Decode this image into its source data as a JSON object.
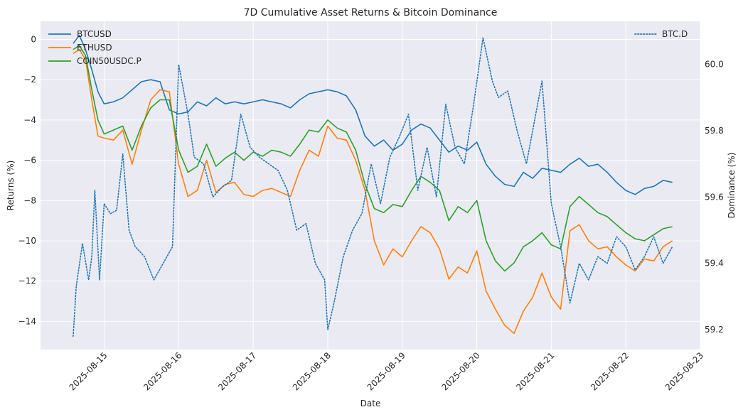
{
  "chart_data": {
    "type": "line",
    "title": "7D Cumulative Asset Returns & Bitcoin Dominance",
    "xlabel": "Date",
    "ylabel": "Returns (%)",
    "ylabel_right": "Dominance (%)",
    "x_ticks": [
      "2025-08-15",
      "2025-08-16",
      "2025-08-17",
      "2025-08-18",
      "2025-08-19",
      "2025-08-20",
      "2025-08-21",
      "2025-08-22",
      "2025-08-23"
    ],
    "xlim": [
      "2025-08-14T03:30",
      "2025-08-23T00:00"
    ],
    "ylim": [
      -15.4,
      0.9
    ],
    "y_ticks": [
      0,
      -2,
      -4,
      -6,
      -8,
      -10,
      -12,
      -14
    ],
    "y_tick_labels": [
      "0",
      "−2",
      "−4",
      "−6",
      "−8",
      "−10",
      "−12",
      "−14"
    ],
    "ylim_right": [
      59.14,
      60.13
    ],
    "y_ticks_right": [
      59.2,
      59.4,
      59.6,
      59.8,
      60.0
    ],
    "y_tick_labels_right": [
      "59.2",
      "59.4",
      "59.6",
      "59.8",
      "60.0"
    ],
    "grid": true,
    "legend_left_position": "top-left",
    "legend_right_position": "top-right",
    "series": [
      {
        "name": "BTCUSD",
        "color": "#1f77b4",
        "axis": "left",
        "style": "solid",
        "x": [
          "2025-08-14T14:00",
          "2025-08-14T16:00",
          "2025-08-14T18:00",
          "2025-08-14T20:00",
          "2025-08-14T22:00",
          "2025-08-15T00:00",
          "2025-08-15T03:00",
          "2025-08-15T06:00",
          "2025-08-15T09:00",
          "2025-08-15T12:00",
          "2025-08-15T15:00",
          "2025-08-15T18:00",
          "2025-08-15T21:00",
          "2025-08-16T00:00",
          "2025-08-16T03:00",
          "2025-08-16T06:00",
          "2025-08-16T09:00",
          "2025-08-16T12:00",
          "2025-08-16T15:00",
          "2025-08-16T18:00",
          "2025-08-16T21:00",
          "2025-08-17T00:00",
          "2025-08-17T03:00",
          "2025-08-17T06:00",
          "2025-08-17T09:00",
          "2025-08-17T12:00",
          "2025-08-17T15:00",
          "2025-08-17T18:00",
          "2025-08-17T21:00",
          "2025-08-18T00:00",
          "2025-08-18T03:00",
          "2025-08-18T06:00",
          "2025-08-18T09:00",
          "2025-08-18T12:00",
          "2025-08-18T15:00",
          "2025-08-18T18:00",
          "2025-08-18T21:00",
          "2025-08-19T00:00",
          "2025-08-19T03:00",
          "2025-08-19T06:00",
          "2025-08-19T09:00",
          "2025-08-19T12:00",
          "2025-08-19T15:00",
          "2025-08-19T18:00",
          "2025-08-19T21:00",
          "2025-08-20T00:00",
          "2025-08-20T03:00",
          "2025-08-20T06:00",
          "2025-08-20T09:00",
          "2025-08-20T12:00",
          "2025-08-20T15:00",
          "2025-08-20T18:00",
          "2025-08-20T21:00",
          "2025-08-21T00:00",
          "2025-08-21T03:00",
          "2025-08-21T06:00",
          "2025-08-21T09:00",
          "2025-08-21T12:00",
          "2025-08-21T15:00",
          "2025-08-21T18:00",
          "2025-08-21T21:00",
          "2025-08-22T00:00",
          "2025-08-22T03:00",
          "2025-08-22T06:00",
          "2025-08-22T09:00",
          "2025-08-22T12:00",
          "2025-08-22T15:00"
        ],
        "y": [
          -0.2,
          0.2,
          -0.5,
          -1.5,
          -2.6,
          -3.2,
          -3.1,
          -2.9,
          -2.5,
          -2.1,
          -2.0,
          -2.1,
          -3.5,
          -3.7,
          -3.6,
          -3.1,
          -3.3,
          -2.9,
          -3.2,
          -3.1,
          -3.2,
          -3.1,
          -3.0,
          -3.1,
          -3.2,
          -3.4,
          -3.0,
          -2.7,
          -2.6,
          -2.5,
          -2.6,
          -2.8,
          -3.5,
          -4.8,
          -5.3,
          -5.0,
          -5.5,
          -5.2,
          -4.5,
          -4.2,
          -4.4,
          -5.0,
          -5.6,
          -5.3,
          -5.5,
          -5.1,
          -6.2,
          -6.8,
          -7.2,
          -7.3,
          -6.6,
          -6.9,
          -6.4,
          -6.5,
          -6.6,
          -6.2,
          -5.9,
          -6.3,
          -6.2,
          -6.6,
          -7.1,
          -7.5,
          -7.7,
          -7.4,
          -7.3,
          -7.0,
          -7.1
        ]
      },
      {
        "name": "ETHUSD",
        "color": "#ff7f0e",
        "axis": "left",
        "style": "solid",
        "x": [
          "2025-08-14T14:00",
          "2025-08-14T16:00",
          "2025-08-14T18:00",
          "2025-08-14T20:00",
          "2025-08-14T22:00",
          "2025-08-15T00:00",
          "2025-08-15T03:00",
          "2025-08-15T06:00",
          "2025-08-15T09:00",
          "2025-08-15T12:00",
          "2025-08-15T15:00",
          "2025-08-15T18:00",
          "2025-08-15T21:00",
          "2025-08-16T00:00",
          "2025-08-16T03:00",
          "2025-08-16T06:00",
          "2025-08-16T09:00",
          "2025-08-16T12:00",
          "2025-08-16T15:00",
          "2025-08-16T18:00",
          "2025-08-16T21:00",
          "2025-08-17T00:00",
          "2025-08-17T03:00",
          "2025-08-17T06:00",
          "2025-08-17T09:00",
          "2025-08-17T12:00",
          "2025-08-17T15:00",
          "2025-08-17T18:00",
          "2025-08-17T21:00",
          "2025-08-18T00:00",
          "2025-08-18T03:00",
          "2025-08-18T06:00",
          "2025-08-18T09:00",
          "2025-08-18T12:00",
          "2025-08-18T15:00",
          "2025-08-18T18:00",
          "2025-08-18T21:00",
          "2025-08-19T00:00",
          "2025-08-19T03:00",
          "2025-08-19T06:00",
          "2025-08-19T09:00",
          "2025-08-19T12:00",
          "2025-08-19T15:00",
          "2025-08-19T18:00",
          "2025-08-19T21:00",
          "2025-08-20T00:00",
          "2025-08-20T03:00",
          "2025-08-20T06:00",
          "2025-08-20T09:00",
          "2025-08-20T12:00",
          "2025-08-20T15:00",
          "2025-08-20T18:00",
          "2025-08-20T21:00",
          "2025-08-21T00:00",
          "2025-08-21T03:00",
          "2025-08-21T06:00",
          "2025-08-21T09:00",
          "2025-08-21T12:00",
          "2025-08-21T15:00",
          "2025-08-21T18:00",
          "2025-08-21T21:00",
          "2025-08-22T00:00",
          "2025-08-22T03:00",
          "2025-08-22T06:00",
          "2025-08-22T09:00",
          "2025-08-22T12:00",
          "2025-08-22T15:00"
        ],
        "y": [
          -0.7,
          -0.5,
          -1.0,
          -3.0,
          -4.8,
          -4.9,
          -5.0,
          -4.5,
          -6.2,
          -4.5,
          -3.0,
          -2.5,
          -2.6,
          -6.2,
          -7.8,
          -7.5,
          -6.0,
          -7.6,
          -7.2,
          -7.1,
          -7.7,
          -7.8,
          -7.5,
          -7.4,
          -7.6,
          -7.8,
          -6.5,
          -5.5,
          -5.8,
          -4.3,
          -4.9,
          -5.0,
          -6.0,
          -7.5,
          -10.0,
          -11.2,
          -10.4,
          -10.8,
          -10.0,
          -9.3,
          -9.6,
          -10.4,
          -11.9,
          -11.3,
          -11.6,
          -10.5,
          -12.5,
          -13.4,
          -14.2,
          -14.6,
          -13.5,
          -12.8,
          -11.6,
          -12.8,
          -13.4,
          -9.5,
          -9.2,
          -10.0,
          -10.4,
          -10.3,
          -10.8,
          -11.2,
          -11.5,
          -10.9,
          -11.0,
          -10.3,
          -10.0
        ]
      },
      {
        "name": "COIN50USDC.P",
        "color": "#2ca02c",
        "axis": "left",
        "style": "solid",
        "x": [
          "2025-08-14T14:00",
          "2025-08-14T16:00",
          "2025-08-14T18:00",
          "2025-08-14T20:00",
          "2025-08-14T22:00",
          "2025-08-15T00:00",
          "2025-08-15T03:00",
          "2025-08-15T06:00",
          "2025-08-15T09:00",
          "2025-08-15T12:00",
          "2025-08-15T15:00",
          "2025-08-15T18:00",
          "2025-08-15T21:00",
          "2025-08-16T00:00",
          "2025-08-16T03:00",
          "2025-08-16T06:00",
          "2025-08-16T09:00",
          "2025-08-16T12:00",
          "2025-08-16T15:00",
          "2025-08-16T18:00",
          "2025-08-16T21:00",
          "2025-08-17T00:00",
          "2025-08-17T03:00",
          "2025-08-17T06:00",
          "2025-08-17T09:00",
          "2025-08-17T12:00",
          "2025-08-17T15:00",
          "2025-08-17T18:00",
          "2025-08-17T21:00",
          "2025-08-18T00:00",
          "2025-08-18T03:00",
          "2025-08-18T06:00",
          "2025-08-18T09:00",
          "2025-08-18T12:00",
          "2025-08-18T15:00",
          "2025-08-18T18:00",
          "2025-08-18T21:00",
          "2025-08-19T00:00",
          "2025-08-19T03:00",
          "2025-08-19T06:00",
          "2025-08-19T09:00",
          "2025-08-19T12:00",
          "2025-08-19T15:00",
          "2025-08-19T18:00",
          "2025-08-19T21:00",
          "2025-08-20T00:00",
          "2025-08-20T03:00",
          "2025-08-20T06:00",
          "2025-08-20T09:00",
          "2025-08-20T12:00",
          "2025-08-20T15:00",
          "2025-08-20T18:00",
          "2025-08-20T21:00",
          "2025-08-21T00:00",
          "2025-08-21T03:00",
          "2025-08-21T06:00",
          "2025-08-21T09:00",
          "2025-08-21T12:00",
          "2025-08-21T15:00",
          "2025-08-21T18:00",
          "2025-08-21T21:00",
          "2025-08-22T00:00",
          "2025-08-22T03:00",
          "2025-08-22T06:00",
          "2025-08-22T09:00",
          "2025-08-22T12:00",
          "2025-08-22T15:00"
        ],
        "y": [
          -0.5,
          -0.3,
          -0.8,
          -2.5,
          -4.0,
          -4.7,
          -4.5,
          -4.3,
          -5.5,
          -4.3,
          -3.4,
          -3.0,
          -3.0,
          -5.5,
          -6.6,
          -6.3,
          -5.2,
          -6.3,
          -5.9,
          -5.6,
          -6.0,
          -5.6,
          -5.8,
          -5.5,
          -5.6,
          -5.8,
          -5.2,
          -4.5,
          -4.6,
          -4.0,
          -4.4,
          -4.6,
          -5.5,
          -7.2,
          -8.4,
          -8.6,
          -8.2,
          -8.3,
          -7.5,
          -6.8,
          -7.1,
          -7.5,
          -9.0,
          -8.3,
          -8.6,
          -8.0,
          -10.0,
          -11.0,
          -11.5,
          -11.1,
          -10.3,
          -10.0,
          -9.6,
          -10.2,
          -10.4,
          -8.3,
          -7.8,
          -8.2,
          -8.6,
          -8.8,
          -9.2,
          -9.6,
          -9.9,
          -10.0,
          -9.7,
          -9.4,
          -9.3
        ]
      },
      {
        "name": "BTC.D",
        "color": "#1f77b4",
        "axis": "right",
        "style": "dotted",
        "x": [
          "2025-08-14T14:00",
          "2025-08-14T15:00",
          "2025-08-14T17:00",
          "2025-08-14T19:00",
          "2025-08-14T20:00",
          "2025-08-14T21:00",
          "2025-08-14T22:30",
          "2025-08-15T00:00",
          "2025-08-15T02:00",
          "2025-08-15T04:00",
          "2025-08-15T06:00",
          "2025-08-15T08:00",
          "2025-08-15T10:00",
          "2025-08-15T13:00",
          "2025-08-15T16:00",
          "2025-08-15T19:00",
          "2025-08-15T22:00",
          "2025-08-16T00:00",
          "2025-08-16T03:00",
          "2025-08-16T05:00",
          "2025-08-16T08:00",
          "2025-08-16T11:00",
          "2025-08-16T14:00",
          "2025-08-16T17:00",
          "2025-08-16T20:00",
          "2025-08-16T23:00",
          "2025-08-17T02:00",
          "2025-08-17T05:00",
          "2025-08-17T08:00",
          "2025-08-17T11:00",
          "2025-08-17T14:00",
          "2025-08-17T17:00",
          "2025-08-17T20:00",
          "2025-08-17T23:00",
          "2025-08-18T00:00",
          "2025-08-18T02:00",
          "2025-08-18T05:00",
          "2025-08-18T08:00",
          "2025-08-18T11:00",
          "2025-08-18T14:00",
          "2025-08-18T17:00",
          "2025-08-18T20:00",
          "2025-08-18T23:00",
          "2025-08-19T02:00",
          "2025-08-19T05:00",
          "2025-08-19T08:00",
          "2025-08-19T11:00",
          "2025-08-19T14:00",
          "2025-08-19T17:00",
          "2025-08-19T20:00",
          "2025-08-19T23:00",
          "2025-08-20T02:00",
          "2025-08-20T05:00",
          "2025-08-20T07:00",
          "2025-08-20T10:00",
          "2025-08-20T13:00",
          "2025-08-20T16:00",
          "2025-08-20T19:00",
          "2025-08-20T21:00",
          "2025-08-21T00:00",
          "2025-08-21T03:00",
          "2025-08-21T06:00",
          "2025-08-21T09:00",
          "2025-08-21T12:00",
          "2025-08-21T15:00",
          "2025-08-21T18:00",
          "2025-08-21T21:00",
          "2025-08-22T00:00",
          "2025-08-22T03:00",
          "2025-08-22T06:00",
          "2025-08-22T09:00",
          "2025-08-22T12:00",
          "2025-08-22T15:00"
        ],
        "y": [
          59.18,
          59.33,
          59.46,
          59.35,
          59.42,
          59.62,
          59.35,
          59.58,
          59.55,
          59.56,
          59.73,
          59.5,
          59.45,
          59.42,
          59.35,
          59.4,
          59.45,
          60.0,
          59.85,
          59.72,
          59.7,
          59.6,
          59.63,
          59.65,
          59.85,
          59.75,
          59.72,
          59.7,
          59.68,
          59.62,
          59.5,
          59.52,
          59.4,
          59.35,
          59.2,
          59.28,
          59.42,
          59.5,
          59.55,
          59.7,
          59.58,
          59.72,
          59.78,
          59.85,
          59.62,
          59.75,
          59.6,
          59.88,
          59.75,
          59.7,
          59.88,
          60.08,
          59.95,
          59.9,
          59.92,
          59.8,
          59.7,
          59.85,
          59.95,
          59.58,
          59.45,
          59.28,
          59.4,
          59.35,
          59.42,
          59.4,
          59.48,
          59.45,
          59.38,
          59.42,
          59.48,
          59.4,
          59.45
        ]
      }
    ]
  }
}
